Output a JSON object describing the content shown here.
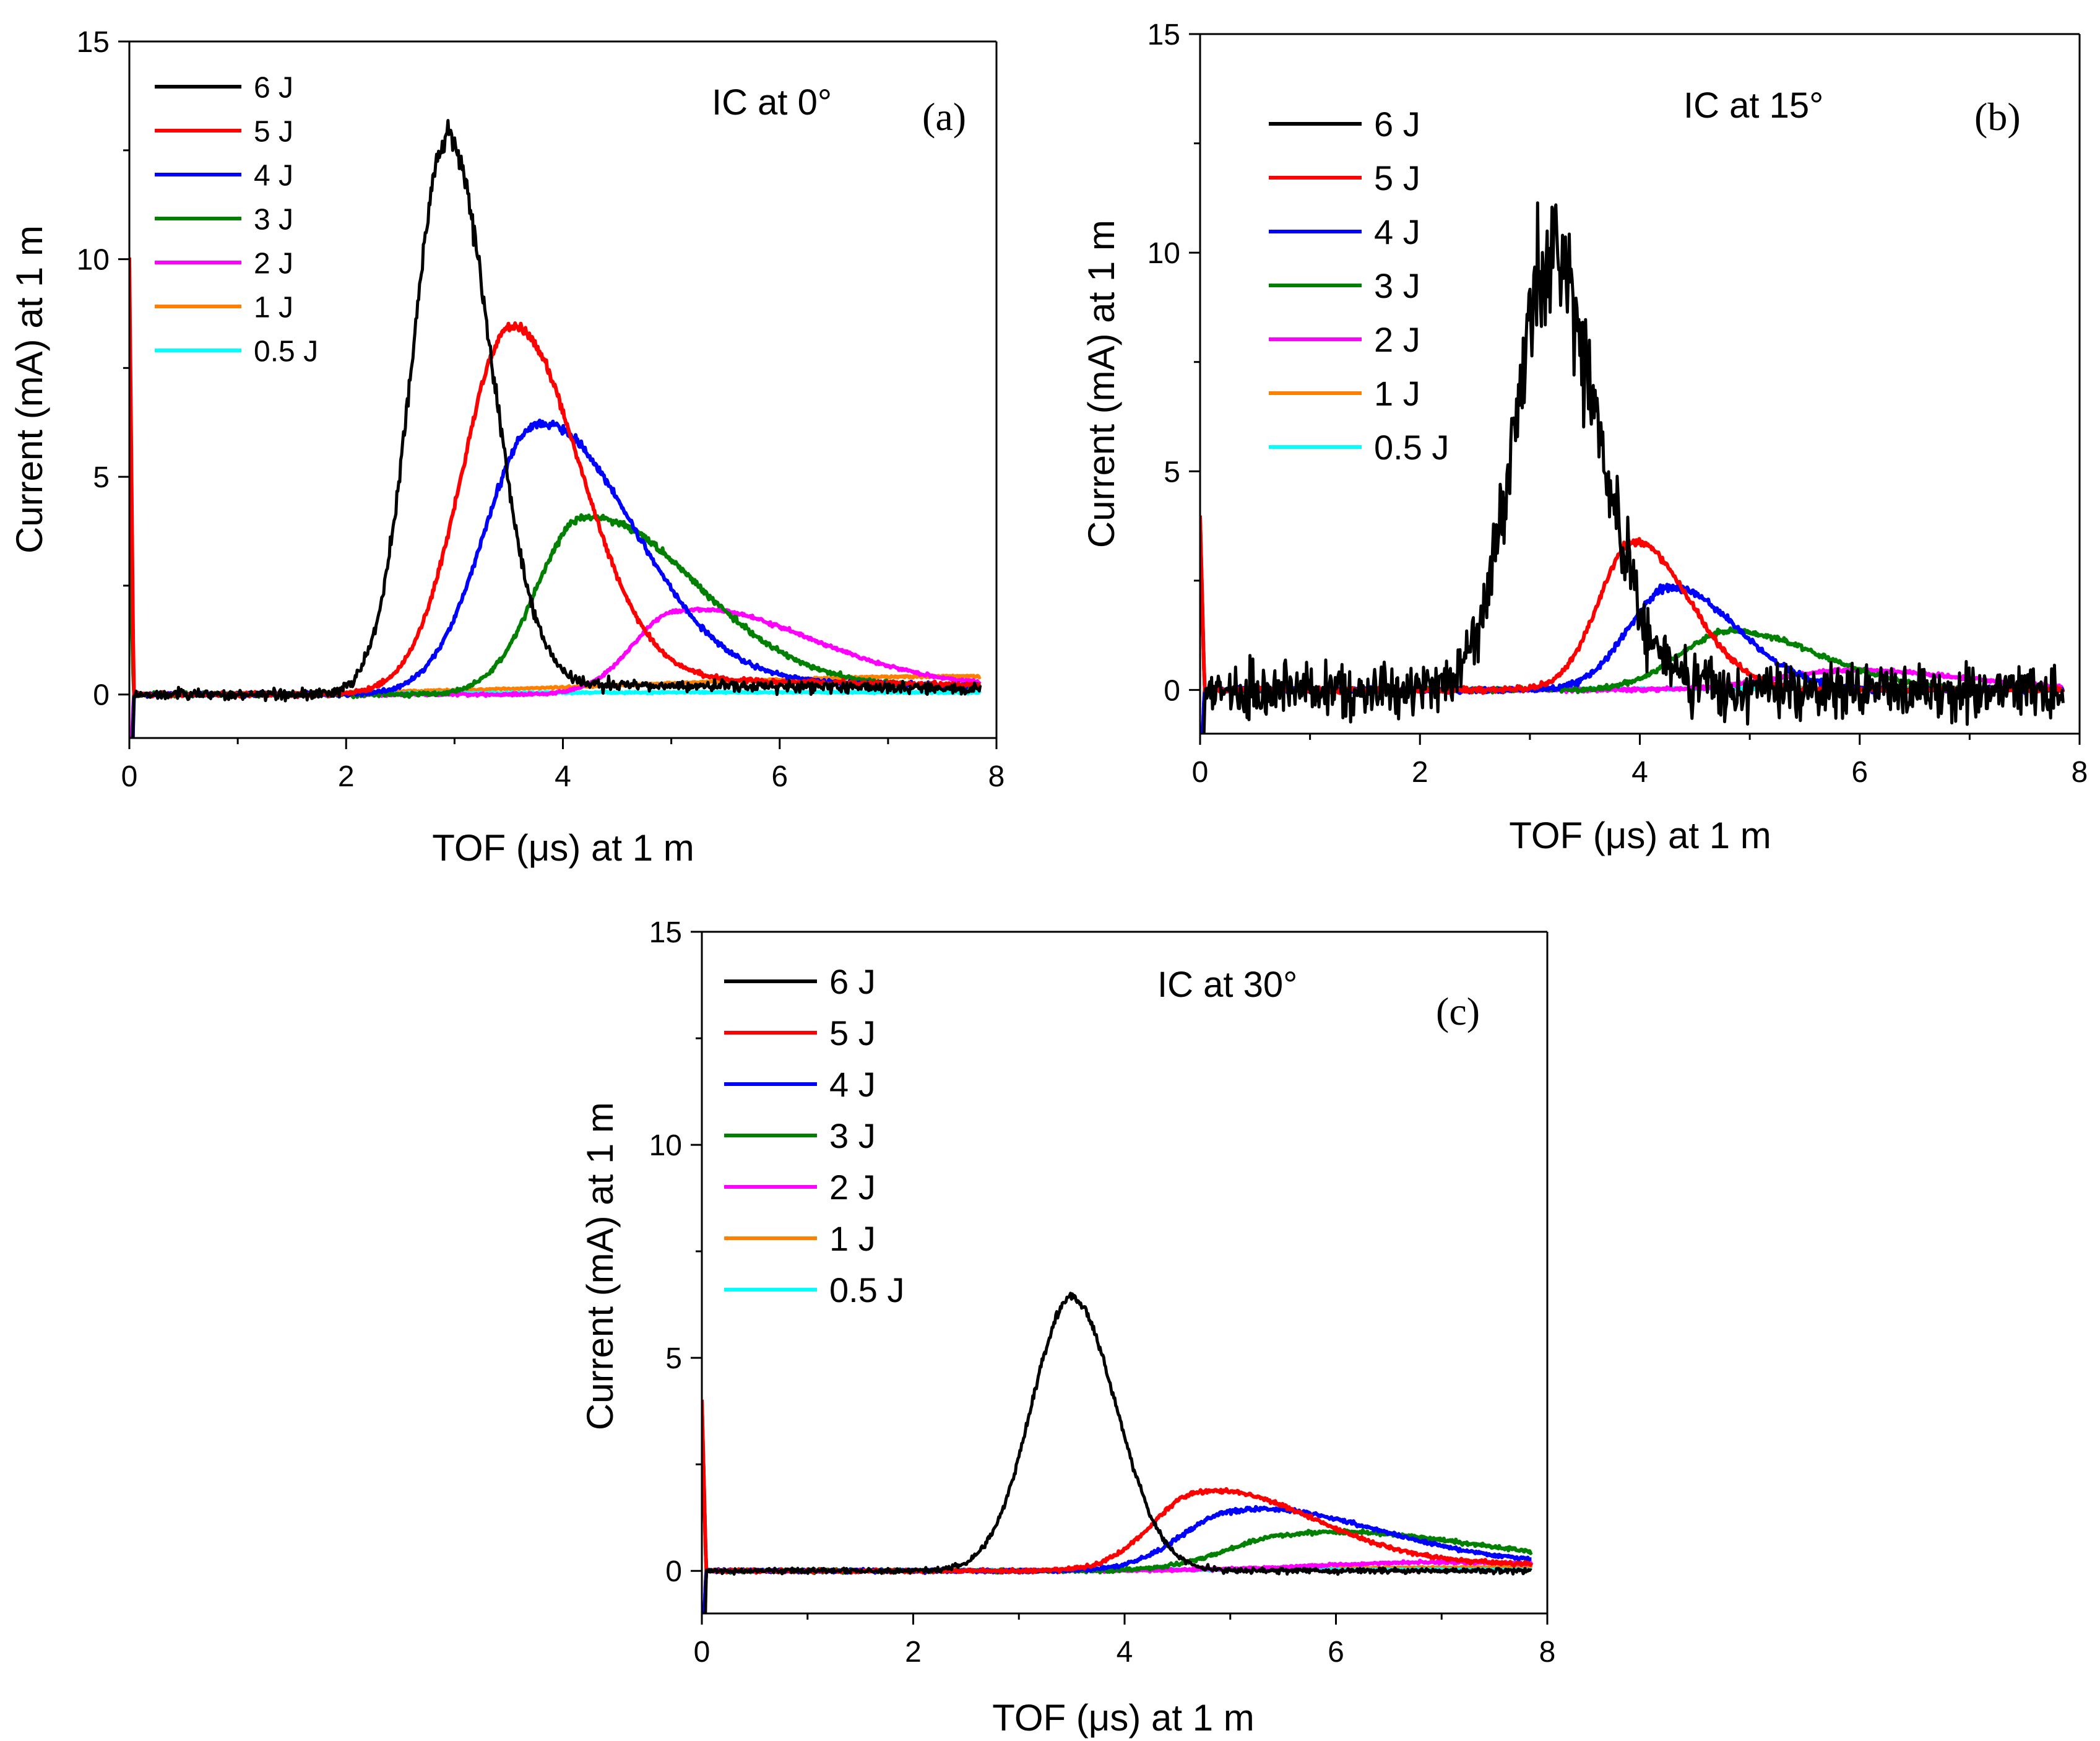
{
  "figure": {
    "colors": {
      "6 J": "#000000",
      "5 J": "#ff0000",
      "4 J": "#0000ff",
      "3 J": "#008000",
      "2 J": "#ff00ff",
      "1 J": "#ff8000",
      "0.5 J": "#00ffff"
    }
  },
  "chart_data": [
    {
      "type": "line",
      "panel_label": "(a)",
      "annotation": "IC at 0°",
      "xlabel": "TOF (μs) at 1 m",
      "ylabel": "Current (mA) at 1 m",
      "xlim": [
        0,
        8
      ],
      "ylim": [
        -1,
        15
      ],
      "xticks": [
        "0",
        "2",
        "4",
        "6",
        "8"
      ],
      "yticks": [
        "0",
        "5",
        "10",
        "15"
      ],
      "legend": "top-left",
      "series": [
        {
          "name": "6 J",
          "peak_x": 2.93,
          "peak_y": 12.8,
          "width_left": 0.32,
          "width_right": 0.4,
          "tail": 0.3,
          "noise": 0.12
        },
        {
          "name": "5 J",
          "peak_x": 3.52,
          "peak_y": 8.45,
          "width_left": 0.45,
          "width_right": 0.62,
          "tail": 0.45,
          "noise": 0.05
        },
        {
          "name": "4 J",
          "peak_x": 3.76,
          "peak_y": 6.2,
          "width_left": 0.48,
          "width_right": 0.85,
          "tail": 0.4,
          "noise": 0.05
        },
        {
          "name": "3 J",
          "peak_x": 4.18,
          "peak_y": 4.05,
          "width_left": 0.42,
          "width_right": 1.0,
          "tail": 0.3,
          "noise": 0.05
        },
        {
          "name": "2 J",
          "peak_x": 5.05,
          "peak_y": 1.9,
          "width_left": 0.4,
          "width_right": 1.15,
          "tail": 0.3,
          "noise": 0.03
        },
        {
          "name": "1 J",
          "peak_x": 7.8,
          "peak_y": 0.42,
          "width_left": 2.8,
          "width_right": 1.0,
          "tail": 0.0,
          "noise": 0.02
        },
        {
          "name": "0.5 J",
          "peak_x": 6.0,
          "peak_y": 0.05,
          "width_left": 3.0,
          "width_right": 3.0,
          "tail": 0.0,
          "noise": 0.02
        }
      ]
    },
    {
      "type": "line",
      "panel_label": "(b)",
      "annotation": "IC at 15°",
      "xlabel": "TOF (μs) at 1 m",
      "ylabel": "Current (mA) at 1 m",
      "xlim": [
        0,
        8
      ],
      "ylim": [
        -1,
        15
      ],
      "xticks": [
        "0",
        "2",
        "4",
        "6",
        "8"
      ],
      "yticks": [
        "0",
        "5",
        "10",
        "15"
      ],
      "legend": "top-left",
      "series": [
        {
          "name": "6 J",
          "peak_x": 3.18,
          "peak_y": 9.8,
          "width_left": 0.33,
          "width_right": 0.45,
          "tail": 0.0,
          "noise": 0.6
        },
        {
          "name": "5 J",
          "peak_x": 3.95,
          "peak_y": 3.4,
          "width_left": 0.32,
          "width_right": 0.5,
          "tail": 0.0,
          "noise": 0.06
        },
        {
          "name": "4 J",
          "peak_x": 4.28,
          "peak_y": 2.35,
          "width_left": 0.38,
          "width_right": 0.6,
          "tail": 0.0,
          "noise": 0.06
        },
        {
          "name": "3 J",
          "peak_x": 4.82,
          "peak_y": 1.35,
          "width_left": 0.45,
          "width_right": 0.8,
          "tail": 0.0,
          "noise": 0.05
        },
        {
          "name": "2 J",
          "peak_x": 5.95,
          "peak_y": 0.45,
          "width_left": 0.7,
          "width_right": 1.0,
          "tail": 0.0,
          "noise": 0.04
        },
        {
          "name": "1 J",
          "peak_x": 6.5,
          "peak_y": 0.05,
          "width_left": 2.0,
          "width_right": 2.0,
          "tail": 0.0,
          "noise": 0.02
        },
        {
          "name": "0.5 J",
          "peak_x": 6.0,
          "peak_y": 0.03,
          "width_left": 3.0,
          "width_right": 3.0,
          "tail": 0.0,
          "noise": 0.02
        }
      ]
    },
    {
      "type": "line",
      "panel_label": "(c)",
      "annotation": "IC at 30°",
      "xlabel": "TOF (μs) at 1 m",
      "ylabel": "Current (mA) at 1 m",
      "xlim": [
        0,
        8
      ],
      "ylim": [
        -1,
        15
      ],
      "xticks": [
        "0",
        "2",
        "4",
        "6",
        "8"
      ],
      "yticks": [
        "0",
        "5",
        "10",
        "15"
      ],
      "legend": "top-left",
      "series": [
        {
          "name": "6 J",
          "peak_x": 3.5,
          "peak_y": 6.4,
          "width_left": 0.38,
          "width_right": 0.42,
          "tail": 0.0,
          "noise": 0.06
        },
        {
          "name": "5 J",
          "peak_x": 4.72,
          "peak_y": 1.85,
          "width_left": 0.45,
          "width_right": 1.0,
          "tail": 0.25,
          "noise": 0.04
        },
        {
          "name": "4 J",
          "peak_x": 5.05,
          "peak_y": 1.4,
          "width_left": 0.5,
          "width_right": 1.25,
          "tail": 0.25,
          "noise": 0.04
        },
        {
          "name": "3 J",
          "peak_x": 5.6,
          "peak_y": 0.85,
          "width_left": 0.6,
          "width_right": 1.6,
          "tail": 0.2,
          "noise": 0.04
        },
        {
          "name": "2 J",
          "peak_x": 7.0,
          "peak_y": 0.2,
          "width_left": 1.2,
          "width_right": 1.5,
          "tail": 0.0,
          "noise": 0.03
        },
        {
          "name": "1 J",
          "peak_x": 7.5,
          "peak_y": 0.08,
          "width_left": 2.0,
          "width_right": 1.5,
          "tail": 0.0,
          "noise": 0.02
        },
        {
          "name": "0.5 J",
          "peak_x": 6.0,
          "peak_y": 0.03,
          "width_left": 3.0,
          "width_right": 3.0,
          "tail": 0.0,
          "noise": 0.02
        }
      ]
    }
  ]
}
